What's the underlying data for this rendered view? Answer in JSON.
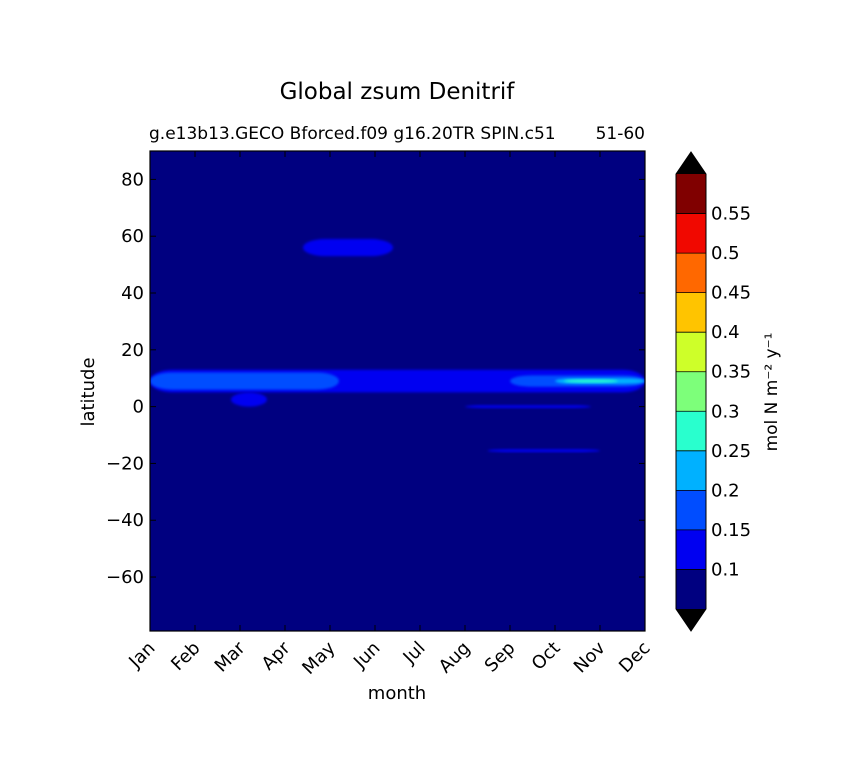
{
  "chart_data": {
    "type": "heatmap",
    "title": "Global zsum Denitrif",
    "subtitle_left": "g.e13b13.GECO Bforced.f09 g16.20TR SPIN.c51",
    "subtitle_right": "51-60",
    "xlabel": "month",
    "ylabel": "latitude",
    "x_categories": [
      "Jan",
      "Feb",
      "Mar",
      "Apr",
      "May",
      "Jun",
      "Jul",
      "Aug",
      "Sep",
      "Oct",
      "Nov",
      "Dec"
    ],
    "ylim": [
      -79,
      90
    ],
    "y_ticks": [
      "80",
      "60",
      "40",
      "20",
      "0",
      "−20",
      "−40",
      "−60"
    ],
    "y_tick_values": [
      80,
      60,
      40,
      20,
      0,
      -20,
      -40,
      -60
    ],
    "colorbar": {
      "label": "mol N m⁻² y⁻¹",
      "levels": [
        0.05,
        0.1,
        0.15,
        0.2,
        0.25,
        0.3,
        0.35,
        0.4,
        0.45,
        0.5,
        0.55,
        0.6
      ],
      "colors": [
        "#000080",
        "#0000f1",
        "#004dff",
        "#00b1ff",
        "#29ffce",
        "#7dff7a",
        "#ceff29",
        "#ffc400",
        "#ff6800",
        "#f10800",
        "#800000"
      ],
      "tick_labels": [
        "0.1",
        "0.15",
        "0.2",
        "0.25",
        "0.3",
        "0.35",
        "0.4",
        "0.45",
        "0.5",
        "0.55"
      ],
      "tick_values": [
        0.1,
        0.15,
        0.2,
        0.25,
        0.3,
        0.35,
        0.4,
        0.45,
        0.5,
        0.55
      ],
      "extend": "both",
      "under_color": "#000000",
      "over_color": "#000000"
    },
    "background_level": 0.05,
    "features": [
      {
        "month_start": 1.0,
        "month_end": 12.0,
        "lat_low": 5,
        "lat_high": 13,
        "value": 0.1
      },
      {
        "month_start": 4.4,
        "month_end": 6.4,
        "lat_low": 53,
        "lat_high": 59,
        "value": 0.1
      },
      {
        "month_start": 8.0,
        "month_end": 10.8,
        "lat_low": -0.5,
        "lat_high": 0.5,
        "value": 0.1
      },
      {
        "month_start": 8.5,
        "month_end": 11.0,
        "lat_low": -16,
        "lat_high": -15,
        "value": 0.1
      },
      {
        "month_start": 1.0,
        "month_end": 5.2,
        "lat_low": 6,
        "lat_high": 12,
        "value": 0.15
      },
      {
        "month_start": 2.8,
        "month_end": 3.6,
        "lat_low": 0,
        "lat_high": 5,
        "value": 0.1
      },
      {
        "month_start": 9.0,
        "month_end": 12.0,
        "lat_low": 7,
        "lat_high": 11,
        "value": 0.15
      },
      {
        "month_start": 10.0,
        "month_end": 12.0,
        "lat_low": 8,
        "lat_high": 10,
        "value": 0.2
      },
      {
        "month_start": 10.2,
        "month_end": 11.4,
        "lat_low": 8.5,
        "lat_high": 9.5,
        "value": 0.25
      }
    ]
  }
}
